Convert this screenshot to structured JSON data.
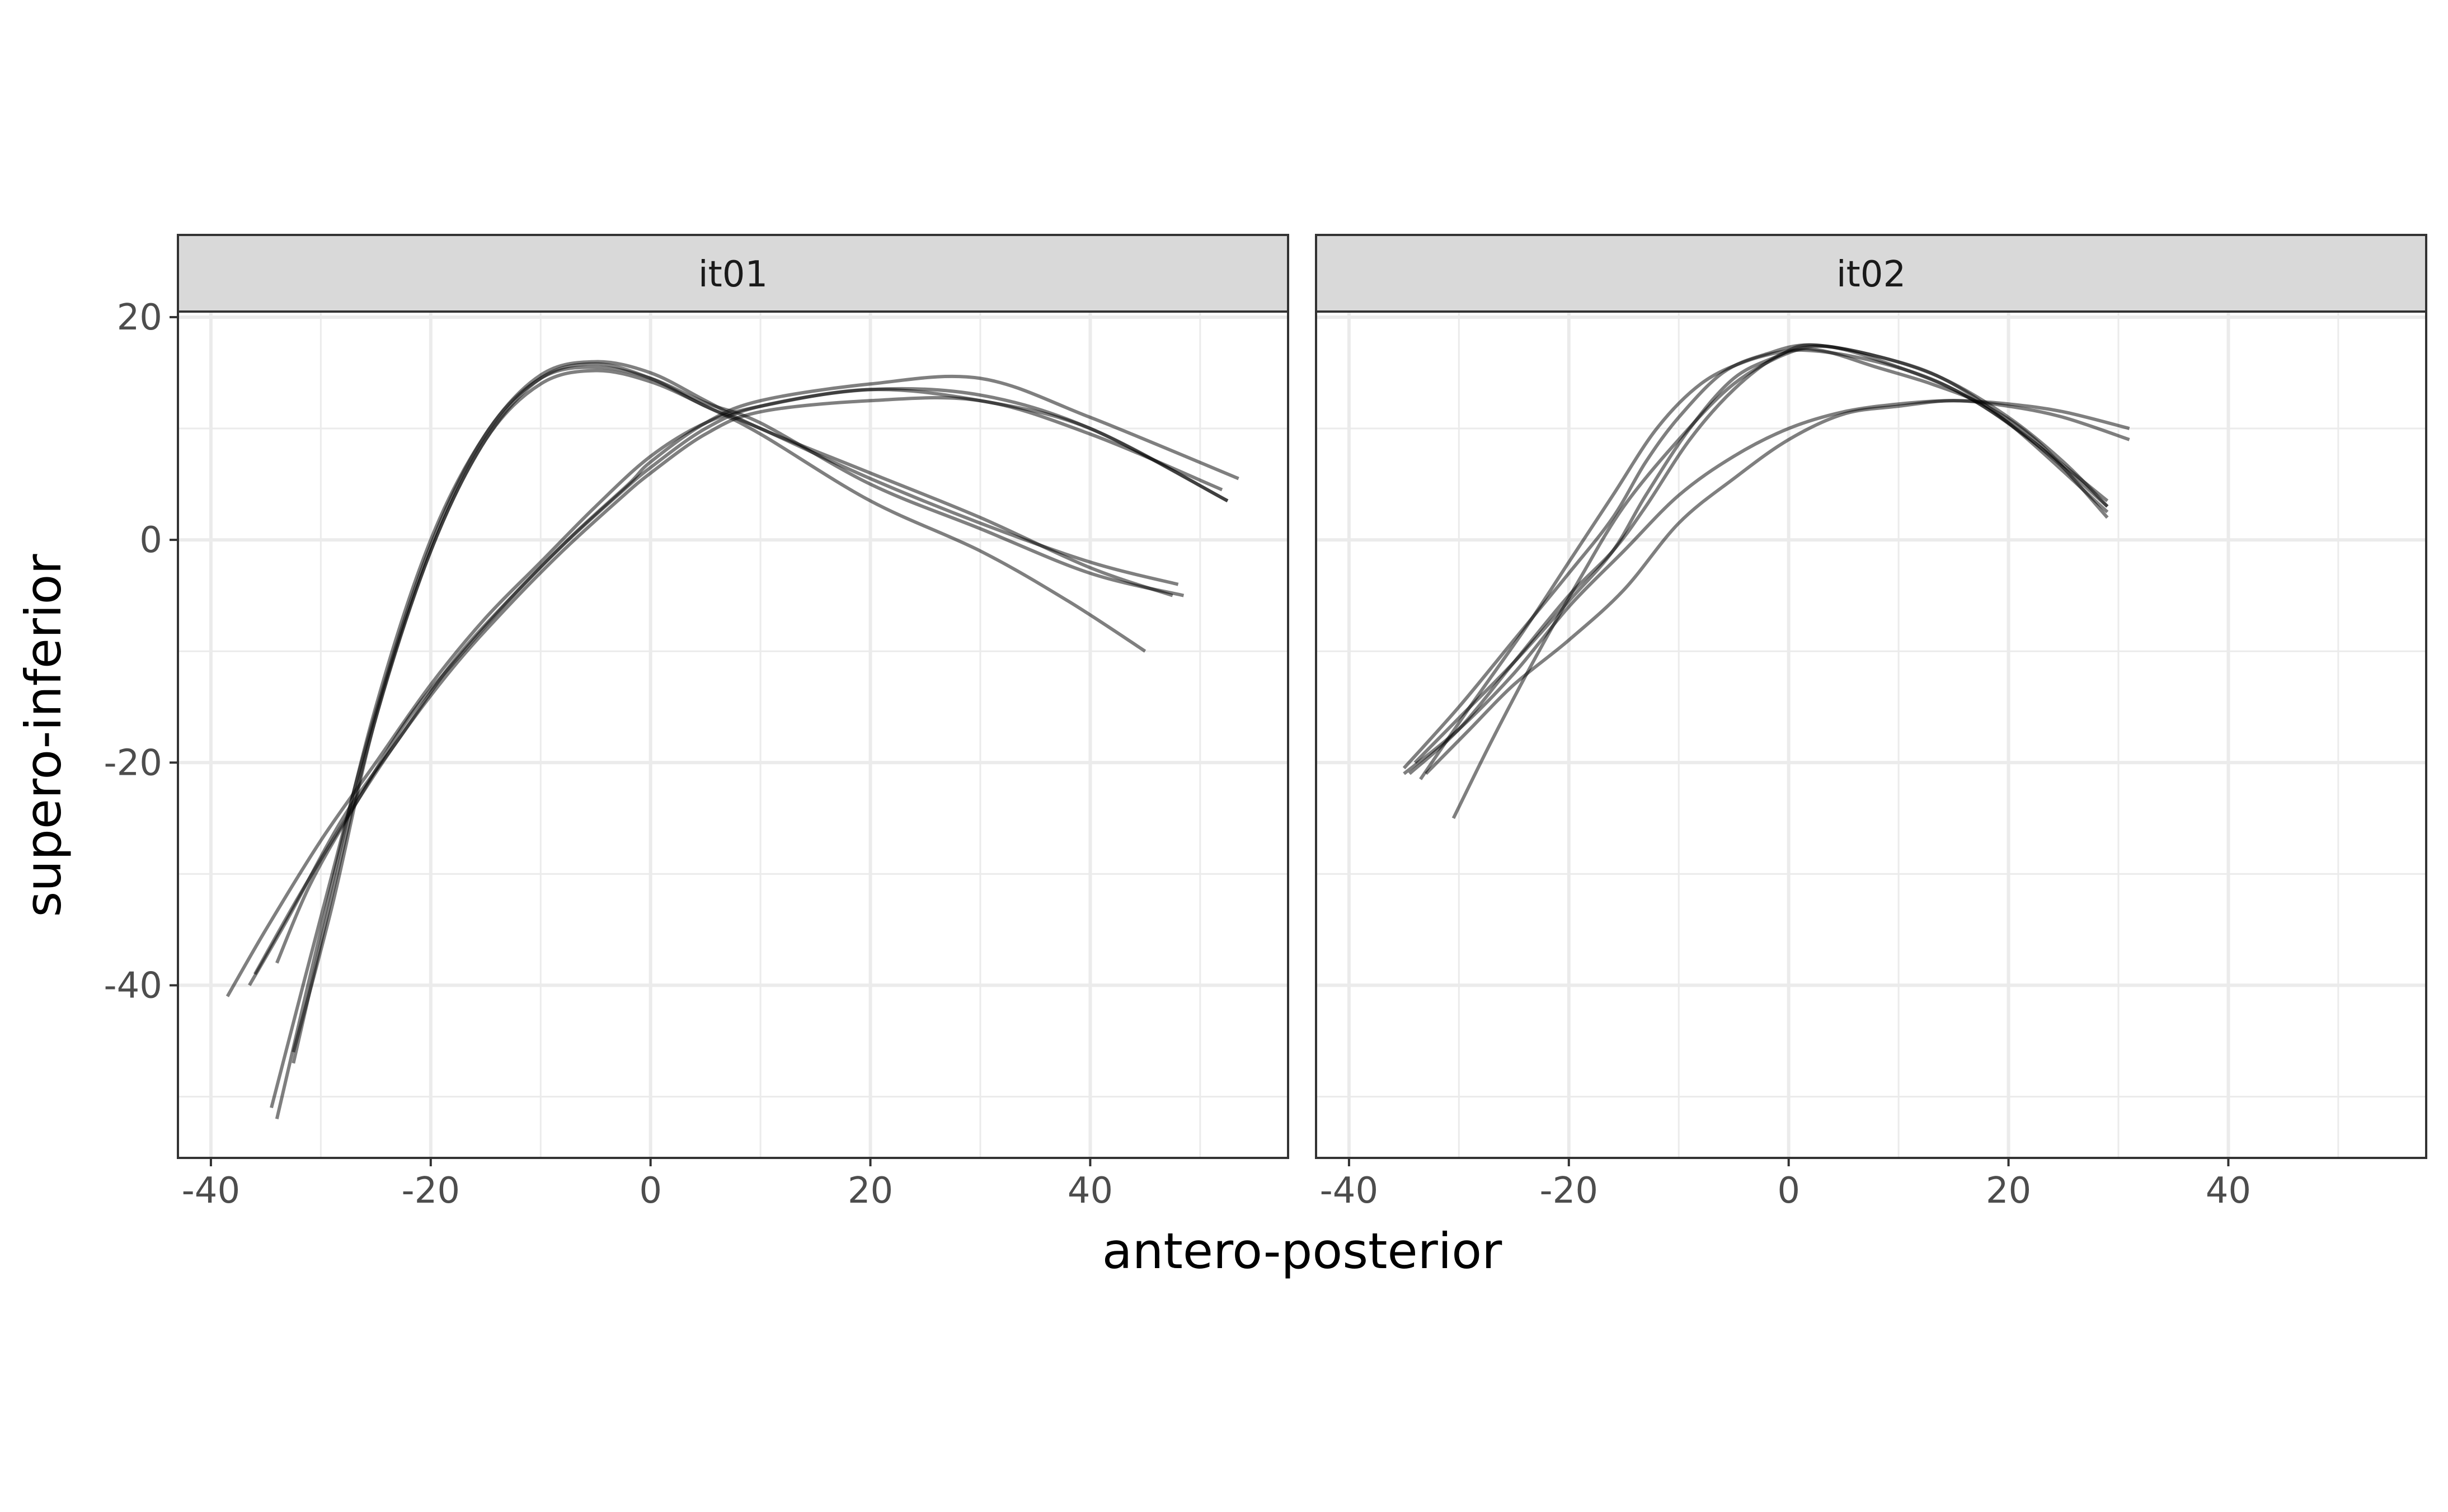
{
  "chart_data": {
    "type": "line",
    "facets": [
      "it01",
      "it02"
    ],
    "xlabel": "antero-posterior",
    "ylabel": "supero-inferior",
    "xlim": [
      -43,
      58
    ],
    "ylim": [
      -55.5,
      20.5
    ],
    "xticks": [
      -40,
      -20,
      0,
      20,
      40
    ],
    "yticks": [
      20,
      0,
      -20,
      -40
    ],
    "x_tick_labels": [
      "-40",
      "-20",
      "0",
      "20",
      "40"
    ],
    "y_tick_labels": [
      "20",
      "0",
      "-20",
      "-40"
    ],
    "grid": true,
    "line_color": "#000000",
    "line_opacity": 0.5,
    "panels": [
      {
        "facet": "it01",
        "series": [
          {
            "points": [
              [
                -32.5,
                -46
              ],
              [
                -29,
                -33
              ],
              [
                -25,
                -16
              ],
              [
                -20,
                -1
              ],
              [
                -15,
                9
              ],
              [
                -10,
                14.5
              ],
              [
                -5,
                15.8
              ],
              [
                0,
                14.5
              ],
              [
                5,
                12
              ],
              [
                10,
                10
              ],
              [
                20,
                5.5
              ],
              [
                30,
                1.5
              ],
              [
                40,
                -2
              ],
              [
                48,
                -4
              ]
            ]
          },
          {
            "points": [
              [
                -34,
                -52
              ],
              [
                -29.5,
                -33
              ],
              [
                -25,
                -15
              ],
              [
                -20,
                0
              ],
              [
                -15,
                9.5
              ],
              [
                -10,
                14.8
              ],
              [
                -5,
                16
              ],
              [
                0,
                15
              ],
              [
                5,
                12.5
              ],
              [
                10,
                10
              ],
              [
                20,
                6
              ],
              [
                30,
                2
              ],
              [
                40,
                -2.5
              ],
              [
                47.5,
                -5
              ]
            ]
          },
          {
            "points": [
              [
                -34.5,
                -51
              ],
              [
                -29.5,
                -32
              ],
              [
                -25,
                -15.5
              ],
              [
                -20,
                -0.5
              ],
              [
                -15,
                9.5
              ],
              [
                -10,
                14.5
              ],
              [
                -5,
                15.5
              ],
              [
                0,
                14.5
              ],
              [
                5,
                12.3
              ],
              [
                10,
                10.5
              ],
              [
                20,
                5
              ],
              [
                30,
                1
              ],
              [
                40,
                -3
              ],
              [
                48.5,
                -5
              ]
            ]
          },
          {
            "points": [
              [
                -32.5,
                -47
              ],
              [
                -29,
                -32
              ],
              [
                -25,
                -16
              ],
              [
                -20,
                -1
              ],
              [
                -15,
                9
              ],
              [
                -10,
                14
              ],
              [
                -5,
                15.2
              ],
              [
                0,
                14.2
              ],
              [
                5,
                12
              ],
              [
                10,
                9.5
              ],
              [
                20,
                3.5
              ],
              [
                30,
                -1
              ],
              [
                38,
                -5.5
              ],
              [
                45,
                -10
              ]
            ]
          },
          {
            "points": [
              [
                -38.5,
                -41
              ],
              [
                -35,
                -35
              ],
              [
                -30,
                -27
              ],
              [
                -25,
                -20
              ],
              [
                -20,
                -13
              ],
              [
                -15,
                -7
              ],
              [
                -10,
                -2
              ],
              [
                -5,
                3
              ],
              [
                0,
                7.5
              ],
              [
                5,
                10.5
              ],
              [
                10,
                12
              ],
              [
                20,
                13.5
              ],
              [
                30,
                12.5
              ],
              [
                40,
                10
              ],
              [
                52.5,
                3.5
              ]
            ]
          },
          {
            "points": [
              [
                -36.5,
                -40
              ],
              [
                -33,
                -34
              ],
              [
                -28,
                -25
              ],
              [
                -23,
                -18
              ],
              [
                -18,
                -11
              ],
              [
                -13,
                -5.5
              ],
              [
                -8,
                -0.5
              ],
              [
                -3,
                4
              ],
              [
                0,
                6.5
              ],
              [
                5,
                10
              ],
              [
                10,
                12
              ],
              [
                20,
                13.5
              ],
              [
                30,
                13
              ],
              [
                40,
                10
              ],
              [
                52.5,
                3.5
              ]
            ]
          },
          {
            "points": [
              [
                -34,
                -38
              ],
              [
                -31,
                -31
              ],
              [
                -27,
                -24
              ],
              [
                -22,
                -16
              ],
              [
                -17,
                -10
              ],
              [
                -12,
                -4.5
              ],
              [
                -7,
                0.5
              ],
              [
                -2,
                5
              ],
              [
                0,
                7
              ],
              [
                5,
                10.5
              ],
              [
                10,
                12.5
              ],
              [
                20,
                14
              ],
              [
                30,
                14.5
              ],
              [
                40,
                11
              ],
              [
                53.5,
                5.5
              ]
            ]
          },
          {
            "points": [
              [
                -36,
                -39
              ],
              [
                -32,
                -32
              ],
              [
                -28,
                -25.5
              ],
              [
                -23,
                -18
              ],
              [
                -18,
                -11.5
              ],
              [
                -13,
                -6
              ],
              [
                -8,
                -1
              ],
              [
                -3,
                3.5
              ],
              [
                0,
                6
              ],
              [
                5,
                9.5
              ],
              [
                10,
                11.5
              ],
              [
                20,
                12.5
              ],
              [
                30,
                12.5
              ],
              [
                40,
                9.5
              ],
              [
                52,
                4.5
              ]
            ]
          }
        ]
      },
      {
        "facet": "it02",
        "series": [
          {
            "points": [
              [
                -30.5,
                -25
              ],
              [
                -27,
                -18
              ],
              [
                -23,
                -10.5
              ],
              [
                -19,
                -3.5
              ],
              [
                -15,
                3
              ],
              [
                -10,
                9
              ],
              [
                -5,
                14
              ],
              [
                0,
                16.8
              ],
              [
                3,
                17
              ],
              [
                8,
                15.5
              ],
              [
                13,
                14
              ],
              [
                18,
                12
              ],
              [
                23,
                8.5
              ],
              [
                29,
                2
              ]
            ]
          },
          {
            "points": [
              [
                -33.5,
                -21.5
              ],
              [
                -29,
                -15
              ],
              [
                -24,
                -8
              ],
              [
                -20,
                -2
              ],
              [
                -16,
                4
              ],
              [
                -12,
                10
              ],
              [
                -8,
                14
              ],
              [
                -4,
                16
              ],
              [
                0,
                17
              ],
              [
                4,
                17.3
              ],
              [
                10,
                15.5
              ],
              [
                16,
                13
              ],
              [
                22,
                9
              ],
              [
                29,
                3.5
              ]
            ]
          },
          {
            "points": [
              [
                -34.5,
                -21
              ],
              [
                -30,
                -17
              ],
              [
                -25,
                -11
              ],
              [
                -20,
                -5
              ],
              [
                -16,
                -1
              ],
              [
                -13,
                3
              ],
              [
                -9,
                9
              ],
              [
                -5,
                13.5
              ],
              [
                -1,
                16.5
              ],
              [
                2,
                17
              ],
              [
                8,
                16
              ],
              [
                14,
                14
              ],
              [
                20,
                10.5
              ],
              [
                25,
                6.5
              ],
              [
                29,
                3
              ]
            ]
          },
          {
            "points": [
              [
                -35,
                -20.5
              ],
              [
                -30,
                -15
              ],
              [
                -25,
                -9
              ],
              [
                -20,
                -3
              ],
              [
                -16,
                2
              ],
              [
                -13,
                7
              ],
              [
                -10,
                11
              ],
              [
                -6,
                15
              ],
              [
                -2,
                16.7
              ],
              [
                2,
                17.5
              ],
              [
                8,
                16.5
              ],
              [
                14,
                14.5
              ],
              [
                20,
                10.5
              ],
              [
                29,
                2.5
              ]
            ]
          },
          {
            "points": [
              [
                -34,
                -20
              ],
              [
                -30,
                -16
              ],
              [
                -25,
                -11
              ],
              [
                -20,
                -5.5
              ],
              [
                -16,
                -1
              ],
              [
                -13,
                4
              ],
              [
                -9,
                10
              ],
              [
                -5,
                14.5
              ],
              [
                -1,
                16.5
              ],
              [
                2,
                17.5
              ],
              [
                8,
                16.5
              ],
              [
                14,
                14.5
              ],
              [
                20,
                11
              ],
              [
                25,
                7
              ],
              [
                29,
                3
              ]
            ]
          },
          {
            "points": [
              [
                -35,
                -21
              ],
              [
                -30,
                -17
              ],
              [
                -25,
                -12
              ],
              [
                -20,
                -6
              ],
              [
                -15,
                -1
              ],
              [
                -10,
                4
              ],
              [
                -5,
                7.5
              ],
              [
                0,
                10
              ],
              [
                5,
                11.5
              ],
              [
                10,
                12.2
              ],
              [
                15,
                12.5
              ],
              [
                20,
                12.2
              ],
              [
                25,
                11.5
              ],
              [
                31,
                10
              ]
            ]
          },
          {
            "points": [
              [
                -33,
                -21
              ],
              [
                -29,
                -17
              ],
              [
                -25,
                -13
              ],
              [
                -20,
                -9
              ],
              [
                -15,
                -4.5
              ],
              [
                -10,
                1.5
              ],
              [
                -5,
                5.5
              ],
              [
                0,
                9
              ],
              [
                5,
                11.3
              ],
              [
                10,
                12
              ],
              [
                15,
                12.5
              ],
              [
                20,
                12
              ],
              [
                25,
                11
              ],
              [
                31,
                9
              ]
            ]
          }
        ]
      }
    ]
  }
}
